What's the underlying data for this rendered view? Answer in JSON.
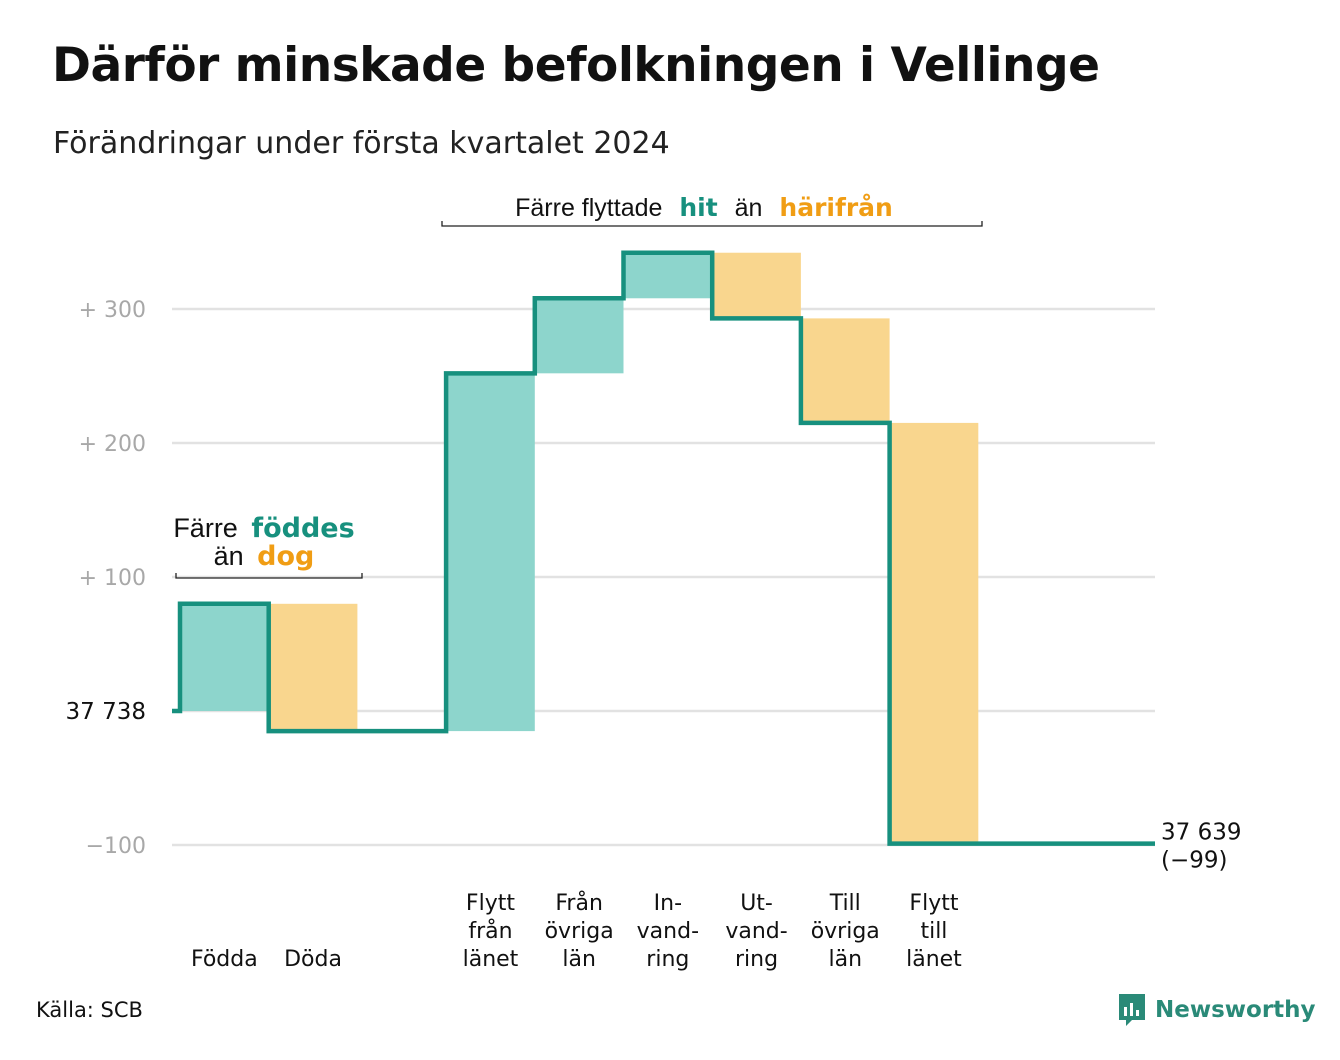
{
  "title": "Därför minskade befolkningen i Vellinge",
  "subtitle": "Förändringar under första kvartalet 2024",
  "source": "Källa: SCB",
  "brand": "Newsworthy",
  "colors": {
    "increase": "#8dd5cc",
    "decrease": "#f9d68e",
    "line": "#17907e",
    "grid": "#e2e2e2",
    "tick": "#a8a8a8",
    "accent_green": "#17907e",
    "accent_orange": "#f09d14"
  },
  "annotations": {
    "births": {
      "part1": "Färre",
      "part2": "föddes",
      "part3": "än",
      "part4": "dog"
    },
    "moves": {
      "part1": "Färre flyttade",
      "part2": "hit",
      "part3": "än",
      "part4": "härifrån"
    }
  },
  "chart_data": {
    "type": "waterfall",
    "start_value": 37738,
    "start_label": "37  738",
    "end_value": 37639,
    "end_label_line1": "37 639",
    "end_label_line2": "(−99)",
    "ylim": [
      -100,
      340
    ],
    "grid": true,
    "y_ticks": [
      {
        "value": 300,
        "label": "+  300"
      },
      {
        "value": 200,
        "label": "+  200"
      },
      {
        "value": 100,
        "label": "+  100"
      },
      {
        "value": 0,
        "label": ""
      },
      {
        "value": -100,
        "label": "−100"
      }
    ],
    "steps": [
      {
        "label": [
          "Födda"
        ],
        "change": 80,
        "direction": "increase"
      },
      {
        "label": [
          "Döda"
        ],
        "change": -95,
        "direction": "decrease"
      },
      {
        "label": [
          "Flytt",
          "från",
          "länet"
        ],
        "change": 267,
        "direction": "increase"
      },
      {
        "label": [
          "Från",
          "övriga",
          "län"
        ],
        "change": 56,
        "direction": "increase"
      },
      {
        "label": [
          "In-",
          "vand-",
          "ring"
        ],
        "change": 34,
        "direction": "increase"
      },
      {
        "label": [
          "Ut-",
          "vand-",
          "ring"
        ],
        "change": -49,
        "direction": "decrease"
      },
      {
        "label": [
          "Till",
          "övriga",
          "län"
        ],
        "change": -78,
        "direction": "decrease"
      },
      {
        "label": [
          "Flytt",
          "till",
          "länet"
        ],
        "change": -314,
        "direction": "decrease"
      }
    ]
  }
}
